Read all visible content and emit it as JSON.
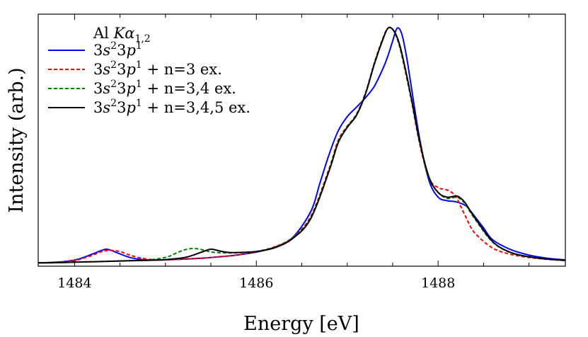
{
  "chart_data": {
    "type": "line",
    "title": "",
    "xlabel": "Energy [eV]",
    "ylabel": "Intensity (arb.)",
    "xlim": [
      1483.6,
      1489.4
    ],
    "ylim": [
      0,
      1.0
    ],
    "x_ticks": [
      1484,
      1486,
      1488
    ],
    "x_tick_labels": [
      "1484",
      "1486",
      "1488"
    ],
    "y_tick_labels": [],
    "legend": {
      "placement": "top-left",
      "header": {
        "prefix": "Al ",
        "sym": "K",
        "alpha": "α",
        "sub": "1,2"
      }
    },
    "series": [
      {
        "name": "3s²3p¹",
        "legend_parts": {
          "a": "3",
          "b": "s",
          "c": "2",
          "d": "3",
          "e": "p",
          "f": "1",
          "tail": ""
        },
        "color": "#0000ff",
        "dash": "solid",
        "x": [
          1483.6,
          1483.8,
          1484.0,
          1484.1,
          1484.2,
          1484.3,
          1484.35,
          1484.4,
          1484.5,
          1484.6,
          1484.7,
          1484.8,
          1484.9,
          1485.0,
          1485.2,
          1485.4,
          1485.6,
          1485.8,
          1486.0,
          1486.2,
          1486.4,
          1486.6,
          1486.7,
          1486.8,
          1486.9,
          1487.0,
          1487.1,
          1487.2,
          1487.3,
          1487.4,
          1487.45,
          1487.5,
          1487.55,
          1487.6,
          1487.65,
          1487.7,
          1487.8,
          1487.9,
          1488.0,
          1488.1,
          1488.2,
          1488.3,
          1488.35,
          1488.4,
          1488.5,
          1488.6,
          1488.8,
          1489.0,
          1489.2,
          1489.4
        ],
        "y": [
          0.002,
          0.005,
          0.014,
          0.025,
          0.04,
          0.055,
          0.06,
          0.055,
          0.04,
          0.026,
          0.018,
          0.014,
          0.014,
          0.015,
          0.018,
          0.022,
          0.028,
          0.036,
          0.048,
          0.068,
          0.11,
          0.22,
          0.34,
          0.46,
          0.56,
          0.62,
          0.66,
          0.7,
          0.75,
          0.83,
          0.88,
          0.94,
          0.995,
          0.97,
          0.88,
          0.76,
          0.52,
          0.35,
          0.28,
          0.265,
          0.26,
          0.245,
          0.225,
          0.2,
          0.15,
          0.1,
          0.058,
          0.035,
          0.022,
          0.015
        ]
      },
      {
        "name": "3s²3p¹ + n=3 ex.",
        "legend_parts": {
          "a": "3",
          "b": "s",
          "c": "2",
          "d": "3",
          "e": "p",
          "f": "1",
          "tail": " + n=3 ex."
        },
        "color": "#ff0000",
        "dash": "dashed",
        "x": [
          1483.6,
          1483.8,
          1484.0,
          1484.1,
          1484.2,
          1484.3,
          1484.4,
          1484.5,
          1484.6,
          1484.7,
          1484.8,
          1484.9,
          1485.0,
          1485.2,
          1485.4,
          1485.6,
          1485.8,
          1486.0,
          1486.2,
          1486.4,
          1486.6,
          1486.8,
          1486.9,
          1487.0,
          1487.1,
          1487.2,
          1487.3,
          1487.4,
          1487.45,
          1487.5,
          1487.55,
          1487.6,
          1487.7,
          1487.8,
          1487.9,
          1488.0,
          1488.05,
          1488.1,
          1488.15,
          1488.2,
          1488.3,
          1488.4,
          1488.6,
          1488.8,
          1489.0,
          1489.2,
          1489.4
        ],
        "y": [
          0.002,
          0.004,
          0.012,
          0.022,
          0.035,
          0.05,
          0.055,
          0.05,
          0.036,
          0.025,
          0.018,
          0.015,
          0.015,
          0.018,
          0.022,
          0.028,
          0.036,
          0.05,
          0.07,
          0.11,
          0.2,
          0.4,
          0.52,
          0.58,
          0.63,
          0.72,
          0.85,
          0.96,
          0.995,
          0.99,
          0.95,
          0.88,
          0.7,
          0.5,
          0.36,
          0.32,
          0.315,
          0.31,
          0.3,
          0.28,
          0.2,
          0.13,
          0.065,
          0.038,
          0.025,
          0.017,
          0.012
        ]
      },
      {
        "name": "3s²3p¹ + n=3,4 ex.",
        "legend_parts": {
          "a": "3",
          "b": "s",
          "c": "2",
          "d": "3",
          "e": "p",
          "f": "1",
          "tail": " + n=3,4 ex."
        },
        "color": "#008000",
        "dash": "dashed",
        "x": [
          1483.6,
          1483.8,
          1484.0,
          1484.2,
          1484.4,
          1484.6,
          1484.8,
          1485.0,
          1485.1,
          1485.2,
          1485.3,
          1485.4,
          1485.5,
          1485.6,
          1485.7,
          1485.8,
          1486.0,
          1486.2,
          1486.4,
          1486.6,
          1486.8,
          1486.9,
          1487.0,
          1487.1,
          1487.2,
          1487.3,
          1487.4,
          1487.45,
          1487.5,
          1487.55,
          1487.6,
          1487.7,
          1487.8,
          1487.9,
          1488.0,
          1488.1,
          1488.2,
          1488.25,
          1488.3,
          1488.4,
          1488.6,
          1488.8,
          1489.0,
          1489.2,
          1489.4
        ],
        "y": [
          0.002,
          0.003,
          0.005,
          0.007,
          0.009,
          0.011,
          0.014,
          0.025,
          0.04,
          0.056,
          0.063,
          0.058,
          0.048,
          0.045,
          0.044,
          0.045,
          0.05,
          0.068,
          0.108,
          0.195,
          0.395,
          0.515,
          0.578,
          0.628,
          0.718,
          0.848,
          0.958,
          0.995,
          0.99,
          0.95,
          0.882,
          0.705,
          0.505,
          0.36,
          0.3,
          0.275,
          0.28,
          0.27,
          0.25,
          0.19,
          0.09,
          0.045,
          0.027,
          0.018,
          0.013
        ]
      },
      {
        "name": "3s²3p¹ + n=3,4,5 ex.",
        "legend_parts": {
          "a": "3",
          "b": "s",
          "c": "2",
          "d": "3",
          "e": "p",
          "f": "1",
          "tail": " + n=3,4,5 ex."
        },
        "color": "#000000",
        "dash": "solid",
        "x": [
          1483.6,
          1483.8,
          1484.0,
          1484.2,
          1484.4,
          1484.6,
          1484.8,
          1485.0,
          1485.2,
          1485.3,
          1485.4,
          1485.5,
          1485.6,
          1485.7,
          1485.8,
          1486.0,
          1486.2,
          1486.4,
          1486.6,
          1486.8,
          1486.9,
          1487.0,
          1487.1,
          1487.2,
          1487.3,
          1487.4,
          1487.45,
          1487.5,
          1487.55,
          1487.6,
          1487.7,
          1487.8,
          1487.9,
          1488.0,
          1488.1,
          1488.2,
          1488.25,
          1488.3,
          1488.4,
          1488.6,
          1488.8,
          1489.0,
          1489.2,
          1489.4
        ],
        "y": [
          0.002,
          0.003,
          0.005,
          0.007,
          0.009,
          0.011,
          0.013,
          0.016,
          0.024,
          0.034,
          0.048,
          0.06,
          0.052,
          0.046,
          0.046,
          0.05,
          0.066,
          0.105,
          0.19,
          0.39,
          0.51,
          0.575,
          0.625,
          0.715,
          0.845,
          0.955,
          0.995,
          0.99,
          0.955,
          0.89,
          0.71,
          0.51,
          0.365,
          0.3,
          0.28,
          0.285,
          0.275,
          0.255,
          0.195,
          0.092,
          0.046,
          0.028,
          0.018,
          0.013
        ]
      }
    ]
  }
}
